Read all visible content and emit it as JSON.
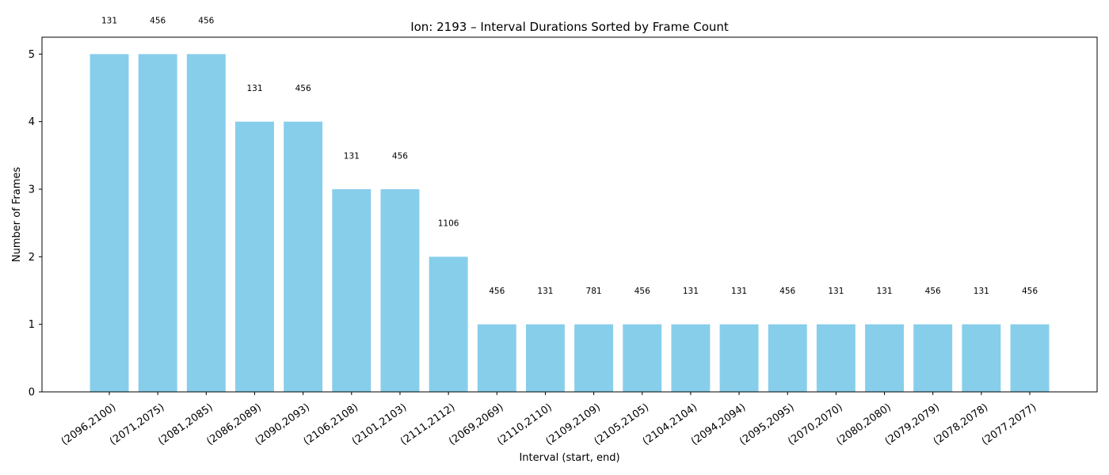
{
  "chart_data": {
    "type": "bar",
    "title": "Ion: 2193 – Interval Durations Sorted by Frame Count",
    "xlabel": "Interval (start, end)",
    "ylabel": "Number of Frames",
    "ylim": [
      0,
      5.25
    ],
    "yticks": [
      0,
      1,
      2,
      3,
      4,
      5
    ],
    "grid": false,
    "bar_color": "#87ceeb",
    "categories": [
      "(2096,2100)",
      "(2071,2075)",
      "(2081,2085)",
      "(2086,2089)",
      "(2090,2093)",
      "(2106,2108)",
      "(2101,2103)",
      "(2111,2112)",
      "(2069,2069)",
      "(2110,2110)",
      "(2109,2109)",
      "(2105,2105)",
      "(2104,2104)",
      "(2094,2094)",
      "(2095,2095)",
      "(2070,2070)",
      "(2080,2080)",
      "(2079,2079)",
      "(2078,2078)",
      "(2077,2077)"
    ],
    "values": [
      5,
      5,
      5,
      4,
      4,
      3,
      3,
      2,
      1,
      1,
      1,
      1,
      1,
      1,
      1,
      1,
      1,
      1,
      1,
      1
    ],
    "annotations": [
      "131",
      "456",
      "456",
      "131",
      "456",
      "131",
      "456",
      "1106",
      "456",
      "131",
      "781",
      "456",
      "131",
      "131",
      "456",
      "131",
      "131",
      "456",
      "131",
      "456"
    ]
  }
}
